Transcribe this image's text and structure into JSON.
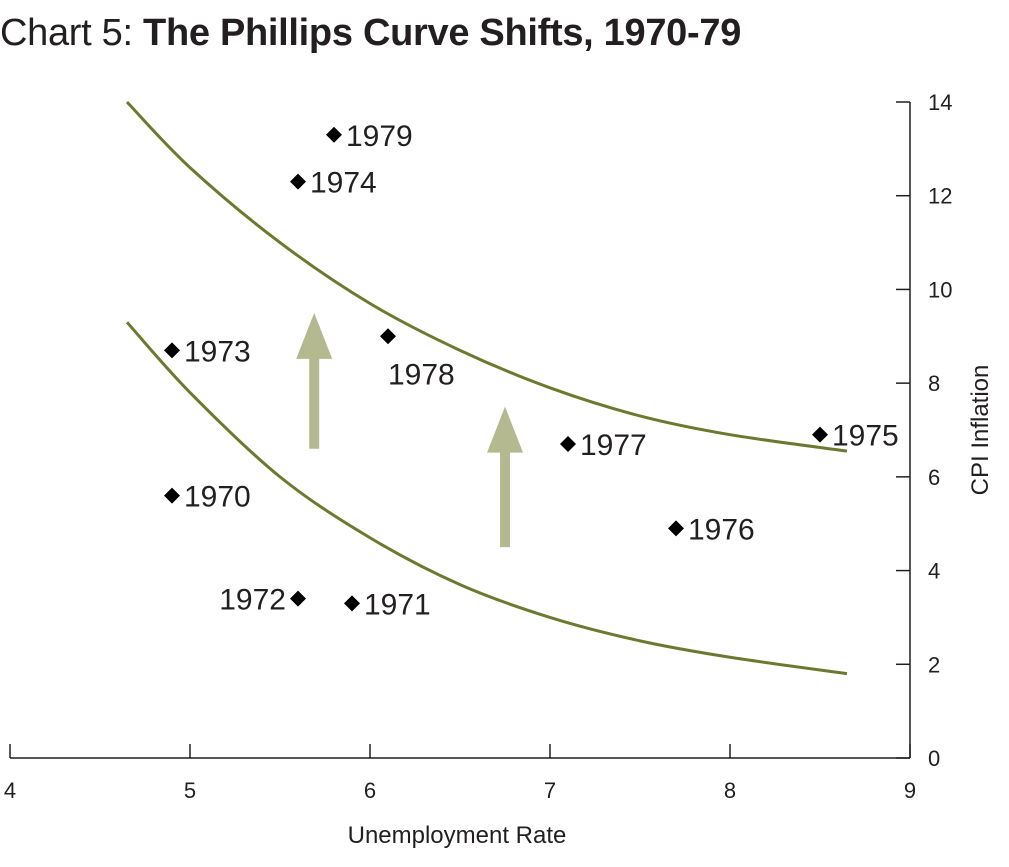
{
  "title": {
    "prefix": "Chart 5: ",
    "main": "The Phillips Curve Shifts, 1970-79"
  },
  "colors": {
    "curve": "#6b7a2f",
    "arrow": "#b4b98f",
    "marker": "#000000",
    "axis": "#231f20"
  },
  "chart_data": {
    "type": "scatter",
    "title": "The Phillips Curve Shifts, 1970-79",
    "xlabel": "Unemployment Rate",
    "ylabel": "CPI Inflation",
    "xlim": [
      4,
      9
    ],
    "ylim": [
      0,
      14
    ],
    "xticks": [
      4,
      5,
      6,
      7,
      8,
      9
    ],
    "yticks": [
      0,
      2,
      4,
      6,
      8,
      10,
      12,
      14
    ],
    "y_axis_side": "right",
    "grid": false,
    "points": [
      {
        "label": "1970",
        "x": 4.9,
        "y": 5.6
      },
      {
        "label": "1971",
        "x": 5.9,
        "y": 3.3
      },
      {
        "label": "1972",
        "x": 5.6,
        "y": 3.4
      },
      {
        "label": "1973",
        "x": 4.9,
        "y": 8.7
      },
      {
        "label": "1974",
        "x": 5.6,
        "y": 12.3
      },
      {
        "label": "1975",
        "x": 8.5,
        "y": 6.9
      },
      {
        "label": "1976",
        "x": 7.7,
        "y": 4.9
      },
      {
        "label": "1977",
        "x": 7.1,
        "y": 6.7
      },
      {
        "label": "1978",
        "x": 6.1,
        "y": 9.0
      },
      {
        "label": "1979",
        "x": 5.8,
        "y": 13.3
      }
    ],
    "curves": [
      {
        "x": [
          4.65,
          5.0,
          5.5,
          6.0,
          6.5,
          7.0,
          7.5,
          8.0,
          8.65
        ],
        "y": [
          14.0,
          12.6,
          11.0,
          9.7,
          8.7,
          7.9,
          7.3,
          6.9,
          6.55
        ]
      },
      {
        "x": [
          4.65,
          5.0,
          5.5,
          6.0,
          6.5,
          7.0,
          7.5,
          8.0,
          8.65
        ],
        "y": [
          9.3,
          7.8,
          6.0,
          4.7,
          3.7,
          3.0,
          2.5,
          2.15,
          1.8
        ]
      }
    ],
    "arrows": [
      {
        "x": 5.69,
        "y_from": 6.6,
        "y_to": 9.5
      },
      {
        "x": 6.75,
        "y_from": 4.5,
        "y_to": 7.5
      }
    ]
  }
}
